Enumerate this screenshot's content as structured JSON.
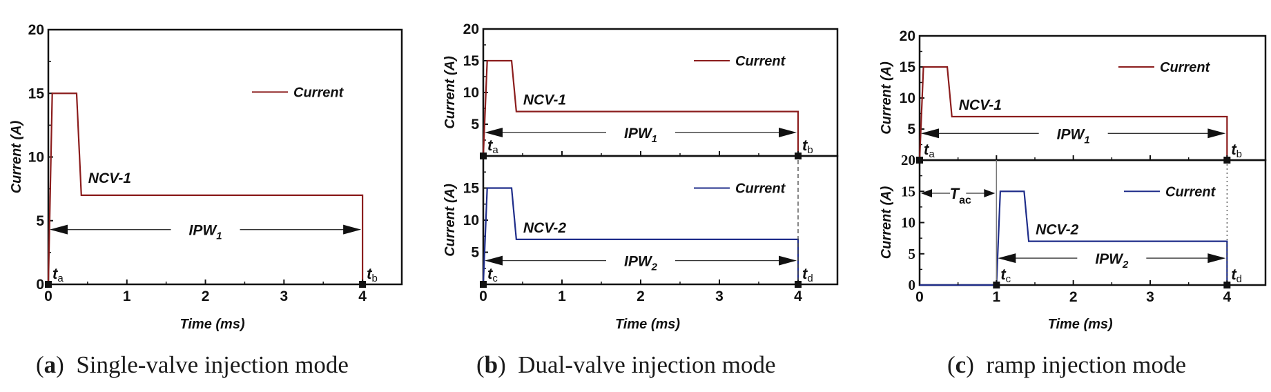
{
  "chart_data": [
    {
      "id": "a",
      "type": "line",
      "caption_letter": "a",
      "caption_text": "Single-valve injection mode",
      "xlabel": "Time (ms)",
      "xlim": [
        0,
        4.5
      ],
      "xticks": [
        0,
        1,
        2,
        3,
        4
      ],
      "grid": false,
      "subplots": [
        {
          "ylabel": "Current (A)",
          "ylim": [
            0,
            20
          ],
          "yticks": [
            0,
            5,
            10,
            15,
            20
          ],
          "legend": {
            "label": "Current",
            "placement": "top-right"
          },
          "series": [
            {
              "name": "Current",
              "color": "#8b1c1c",
              "x": [
                0,
                0.05,
                0.36,
                0.42,
                4.0,
                4.0
              ],
              "y": [
                0,
                15,
                15,
                7,
                7,
                0
              ]
            }
          ],
          "annotations": {
            "nozzle_label": "NCV-1",
            "pulse_width": {
              "label": "IPW",
              "subscript": "1",
              "from": 0,
              "to": 4,
              "y": 4.3
            },
            "markers": [
              {
                "label": "t",
                "subscript": "a",
                "x": 0
              },
              {
                "label": "t",
                "subscript": "b",
                "x": 4
              }
            ]
          }
        }
      ]
    },
    {
      "id": "b",
      "type": "line",
      "caption_letter": "b",
      "caption_text": "Dual-valve injection mode",
      "xlabel": "Time (ms)",
      "xlim": [
        0,
        4.5
      ],
      "xticks": [
        0,
        1,
        2,
        3,
        4
      ],
      "grid": false,
      "link_line": {
        "x": 4,
        "style": "dashed"
      },
      "subplots": [
        {
          "ylabel": "Current (A)",
          "ylim": [
            0,
            20
          ],
          "yticks": [
            5,
            10,
            15,
            20
          ],
          "legend": {
            "label": "Current",
            "placement": "top-right"
          },
          "series": [
            {
              "name": "Current",
              "color": "#8b1c1c",
              "x": [
                0,
                0.05,
                0.36,
                0.42,
                4.0,
                4.0
              ],
              "y": [
                0,
                15,
                15,
                7,
                7,
                0
              ]
            }
          ],
          "annotations": {
            "nozzle_label": "NCV-1",
            "pulse_width": {
              "label": "IPW",
              "subscript": "1",
              "from": 0,
              "to": 4,
              "y": 3.7
            },
            "markers": [
              {
                "label": "t",
                "subscript": "a",
                "x": 0
              },
              {
                "label": "t",
                "subscript": "b",
                "x": 4
              }
            ]
          }
        },
        {
          "ylabel": "Current (A)",
          "ylim": [
            0,
            20
          ],
          "yticks": [
            5,
            10,
            15
          ],
          "legend": {
            "label": "Current",
            "placement": "top-right"
          },
          "series": [
            {
              "name": "Current",
              "color": "#1f2d8a",
              "x": [
                0,
                0.05,
                0.36,
                0.42,
                4.0,
                4.0
              ],
              "y": [
                0,
                15,
                15,
                7,
                7,
                0
              ]
            }
          ],
          "annotations": {
            "nozzle_label": "NCV-2",
            "pulse_width": {
              "label": "IPW",
              "subscript": "2",
              "from": 0,
              "to": 4,
              "y": 3.7
            },
            "markers": [
              {
                "label": "t",
                "subscript": "c",
                "x": 0
              },
              {
                "label": "t",
                "subscript": "d",
                "x": 4
              }
            ]
          }
        }
      ]
    },
    {
      "id": "c",
      "type": "line",
      "caption_letter": "c",
      "caption_text": "ramp injection mode",
      "xlabel": "Time (ms)",
      "xlim": [
        0,
        4.5
      ],
      "xticks": [
        0,
        1,
        2,
        3,
        4
      ],
      "grid": false,
      "link_line": {
        "x": 4,
        "style": "dotted"
      },
      "subplots": [
        {
          "ylabel": "Current (A)",
          "ylim": [
            0,
            20
          ],
          "yticks": [
            5,
            10,
            15,
            20
          ],
          "legend": {
            "label": "Current",
            "placement": "top-right"
          },
          "series": [
            {
              "name": "Current",
              "color": "#8b1c1c",
              "x": [
                0,
                0.05,
                0.36,
                0.42,
                4.0,
                4.0
              ],
              "y": [
                0,
                15,
                15,
                7,
                7,
                0
              ]
            }
          ],
          "annotations": {
            "nozzle_label": "NCV-1",
            "pulse_width": {
              "label": "IPW",
              "subscript": "1",
              "from": 0,
              "to": 4,
              "y": 4.3
            },
            "markers": [
              {
                "label": "t",
                "subscript": "a",
                "x": 0
              },
              {
                "label": "t",
                "subscript": "b",
                "x": 4
              }
            ]
          }
        },
        {
          "ylabel": "Current (A)",
          "ylim": [
            0,
            20
          ],
          "yticks": [
            0,
            5,
            10,
            15,
            20
          ],
          "legend": {
            "label": "Current",
            "placement": "top-right"
          },
          "series": [
            {
              "name": "Current",
              "color": "#1f2d8a",
              "x": [
                0,
                1.0,
                1.05,
                1.36,
                1.42,
                4.0,
                4.0
              ],
              "y": [
                0,
                0,
                15,
                15,
                7,
                7,
                0
              ]
            }
          ],
          "annotations": {
            "nozzle_label": "NCV-2",
            "pulse_width": {
              "label": "IPW",
              "subscript": "2",
              "from": 1,
              "to": 4,
              "y": 4.3
            },
            "delay": {
              "label": "T",
              "subscript": "ac",
              "from": 0,
              "to": 1,
              "y": 14.7
            },
            "markers": [
              {
                "label": "t",
                "subscript": "c",
                "x": 1
              },
              {
                "label": "t",
                "subscript": "d",
                "x": 4
              }
            ]
          }
        }
      ]
    }
  ]
}
